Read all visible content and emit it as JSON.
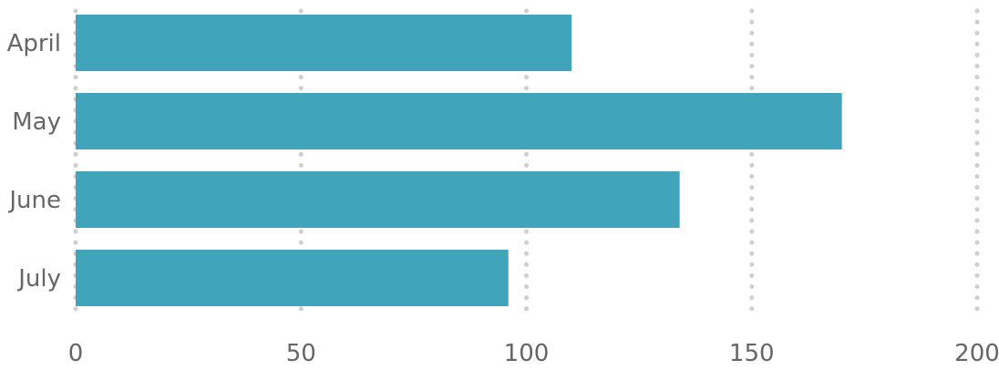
{
  "chart_data": {
    "type": "bar",
    "orientation": "horizontal",
    "title": "",
    "xlabel": "",
    "ylabel": "",
    "categories": [
      "April",
      "May",
      "June",
      "July"
    ],
    "values": [
      110,
      170,
      134,
      96
    ],
    "xlim": [
      0,
      200
    ],
    "xticks": [
      0,
      50,
      100,
      150,
      200
    ],
    "grid": true,
    "bar_color": "#40a4bb",
    "grid_color": "#cfcfcf",
    "label_color": "#666666"
  }
}
